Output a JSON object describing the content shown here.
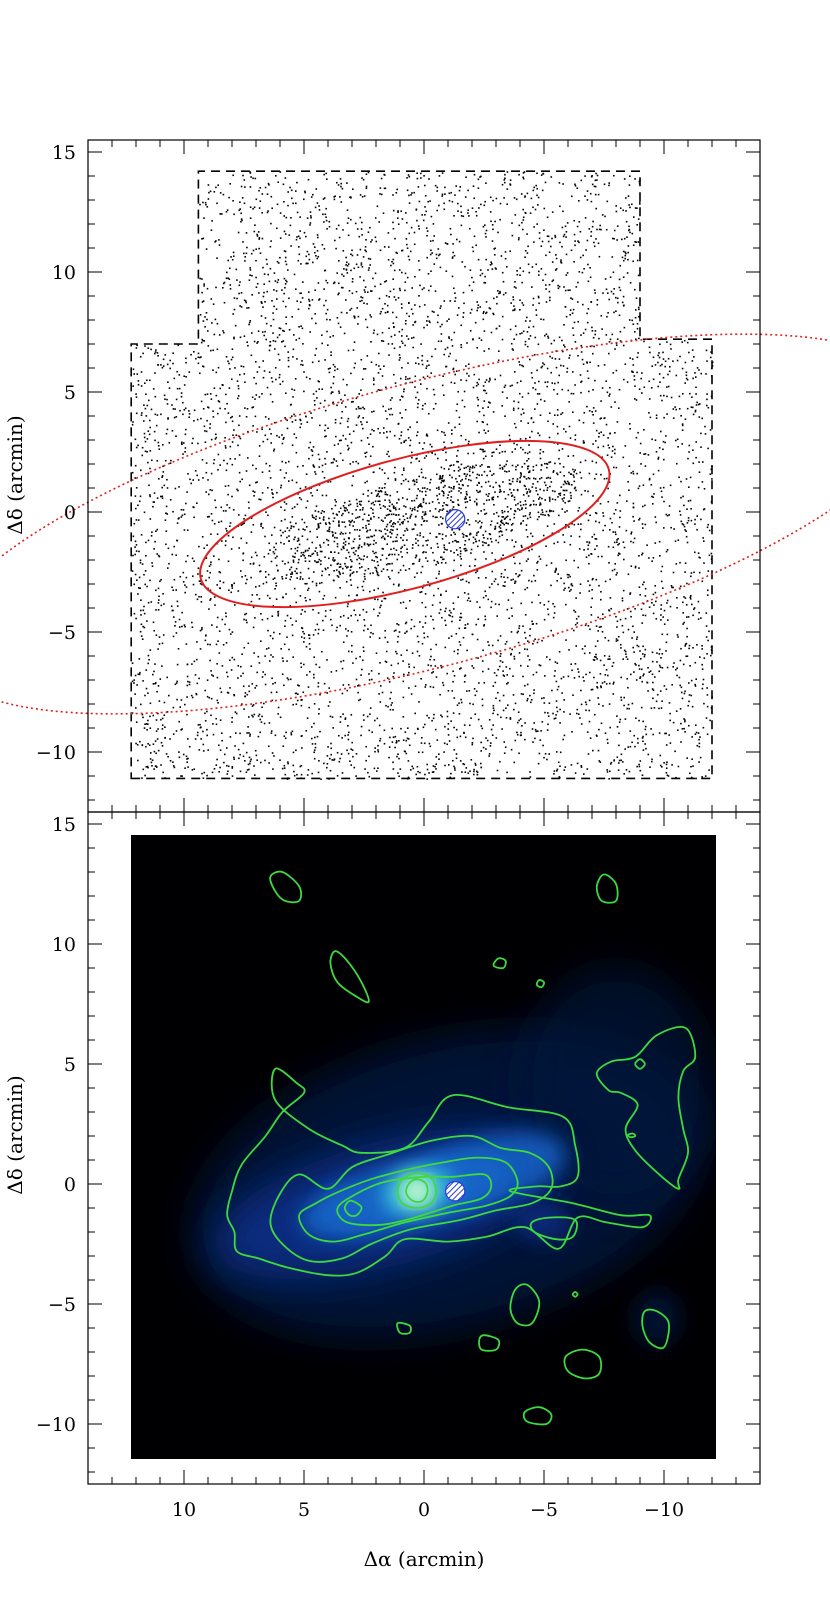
{
  "chart_data": [
    {
      "type": "scatter",
      "panel": "top",
      "description_of_marks": "point map of individual stars within a dashed survey footprint",
      "xlabel": "",
      "ylabel": "Δδ (arcmin)",
      "xlim": [
        14,
        -14
      ],
      "ylim": [
        -12.5,
        15.5
      ],
      "x_ticks": [
        10,
        5,
        0,
        -5,
        -10
      ],
      "y_ticks": [
        15,
        10,
        5,
        0,
        -5,
        -10
      ],
      "y_tick_labels": [
        "15",
        "10",
        "5",
        "0",
        "−5",
        "−10"
      ],
      "footprint": {
        "style": "dashed",
        "color": "#000000",
        "vertices": [
          [
            12.2,
            -11.1
          ],
          [
            -12.0,
            -11.1
          ],
          [
            -12.0,
            7.2
          ],
          [
            -9.0,
            7.2
          ],
          [
            -9.0,
            14.2
          ],
          [
            9.4,
            14.2
          ],
          [
            9.4,
            7.0
          ],
          [
            12.2,
            7.0
          ]
        ]
      },
      "ellipses": [
        {
          "style": "solid",
          "color": "#e02020",
          "center": [
            0.8,
            -0.5
          ],
          "semi_major": 8.8,
          "semi_minor": 2.7,
          "angle_deg": 15
        },
        {
          "style": "dotted",
          "color": "#e02020",
          "center": [
            -0.2,
            -0.5
          ],
          "semi_major": 21.2,
          "semi_minor": 5.9,
          "angle_deg": 15
        }
      ],
      "marker": {
        "style": "hatched-circle",
        "color": "#2a3ad8",
        "center": [
          -1.3,
          -0.3
        ],
        "radius": 0.4
      },
      "approx_star_count": 6200
    },
    {
      "type": "heatmap",
      "panel": "bottom",
      "description_of_marks": "smoothed stellar density map with green isodensity contours",
      "xlabel": "Δα (arcmin)",
      "ylabel": "Δδ (arcmin)",
      "xlim": [
        14,
        -14
      ],
      "ylim": [
        -12.5,
        15.5
      ],
      "x_ticks": [
        10,
        5,
        0,
        -5,
        -10
      ],
      "x_tick_labels": [
        "10",
        "5",
        "0",
        "−5",
        "−10"
      ],
      "y_ticks": [
        15,
        10,
        5,
        0,
        -5,
        -10
      ],
      "y_tick_labels": [
        "15",
        "10",
        "5",
        "0",
        "−5",
        "−10"
      ],
      "map_extent": {
        "x": [
          12.2,
          -12.0
        ],
        "y": [
          -11.4,
          14.2
        ]
      },
      "colormap": [
        "#000000",
        "#04123a",
        "#0a2f86",
        "#1565c8",
        "#2fb0e0",
        "#8ff0b0",
        "#f4fff0"
      ],
      "contour_color": "#3ed93e",
      "peak": {
        "center": [
          0.3,
          -0.3
        ]
      },
      "marker": {
        "style": "hatched-circle",
        "color": "#2a3ad8",
        "center": [
          -1.3,
          -0.3
        ],
        "radius": 0.4
      }
    }
  ]
}
